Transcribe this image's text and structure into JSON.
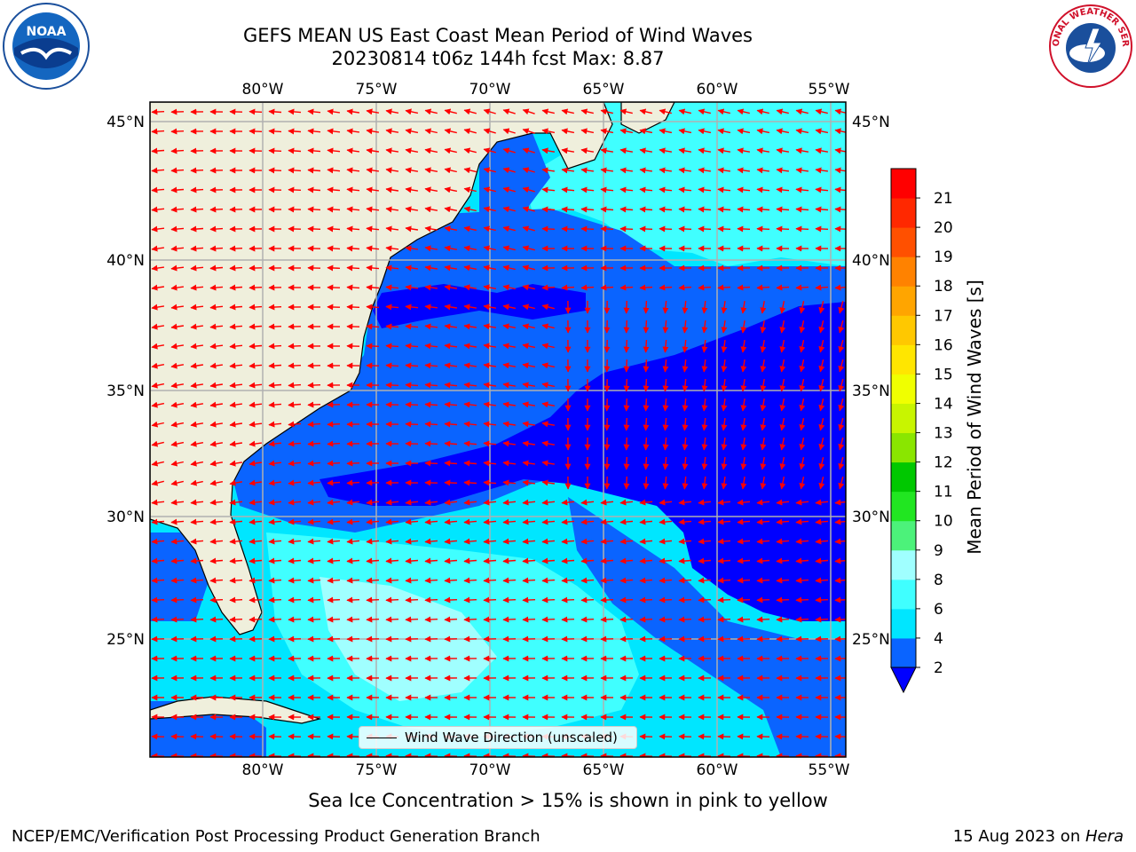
{
  "title": {
    "line1": "GEFS MEAN US East Coast Mean Period of Wind Waves",
    "line2": "20230814 t06z 144h fcst   Max: 8.87"
  },
  "logos": {
    "left": "NOAA",
    "right": "NATIONAL WEATHER SERVICE"
  },
  "map": {
    "lon_ticks": [
      "80°W",
      "75°W",
      "70°W",
      "65°W",
      "60°W",
      "55°W"
    ],
    "lat_ticks": [
      "45°N",
      "40°N",
      "35°N",
      "30°N",
      "25°N"
    ],
    "lon_range": [
      -85,
      -54.3
    ],
    "lat_range": [
      20.5,
      45.8
    ],
    "land_color": "#efefdc",
    "arrow_color": "#ff0000",
    "grid_color": "#b0b0b0"
  },
  "colorbar": {
    "label": "Mean Period of Wind Waves [s]",
    "tick_labels": [
      "2",
      "4",
      "6",
      "8",
      "9",
      "10",
      "11",
      "12",
      "13",
      "14",
      "15",
      "16",
      "17",
      "18",
      "19",
      "20",
      "21"
    ],
    "colors": [
      "#0a64ff",
      "#00e6ff",
      "#40ffff",
      "#a0ffff",
      "#4cf27a",
      "#21e621",
      "#00c800",
      "#8ae600",
      "#c8f500",
      "#f0ff00",
      "#ffe600",
      "#ffc800",
      "#ffa500",
      "#ff8200",
      "#ff5000",
      "#ff2800",
      "#ff0000"
    ],
    "under_color": "#0000ff"
  },
  "legend": {
    "label": "Wind Wave Direction (unscaled)"
  },
  "note": "Sea Ice Concentration > 15% is shown in pink to yellow",
  "footer": {
    "left": "NCEP/EMC/Verification Post Processing Product Generation Branch",
    "right_prefix": "15 Aug 2023 on ",
    "right_emph": "Hera"
  }
}
